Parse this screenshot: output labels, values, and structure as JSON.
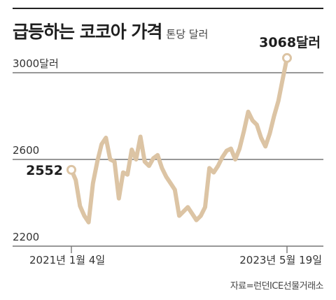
{
  "header": {
    "title": "급등하는 코코아 가격",
    "unit": "톤당 달러"
  },
  "source": "자료=런던ICE선물거래소",
  "colors": {
    "line": "#dcc4a4",
    "grid": "#777777",
    "top_border": "#222222",
    "text": "#222222"
  },
  "chart_data": {
    "type": "line",
    "title": "급등하는 코코아 가격",
    "ylabel": "톤당 달러",
    "xlabel": "",
    "ylim": [
      2200,
      3000
    ],
    "y_ticks": [
      {
        "value": 3000,
        "label": "3000달러"
      },
      {
        "value": 2600,
        "label": "2600"
      },
      {
        "value": 2200,
        "label": "2200"
      }
    ],
    "x_ticks": [
      {
        "index": 0,
        "label": "2021년 1월 4일"
      },
      {
        "index": 50,
        "label": "2023년 5월 19일"
      }
    ],
    "grid": true,
    "start_label": "2552",
    "end_label": "3068달러",
    "values": [
      2552,
      2505,
      2385,
      2340,
      2310,
      2490,
      2590,
      2670,
      2700,
      2600,
      2590,
      2420,
      2540,
      2530,
      2645,
      2600,
      2705,
      2590,
      2570,
      2605,
      2620,
      2560,
      2520,
      2490,
      2460,
      2340,
      2360,
      2380,
      2350,
      2320,
      2340,
      2380,
      2560,
      2540,
      2570,
      2610,
      2640,
      2650,
      2600,
      2650,
      2730,
      2820,
      2780,
      2760,
      2700,
      2660,
      2720,
      2800,
      2870,
      2970,
      3068
    ]
  }
}
